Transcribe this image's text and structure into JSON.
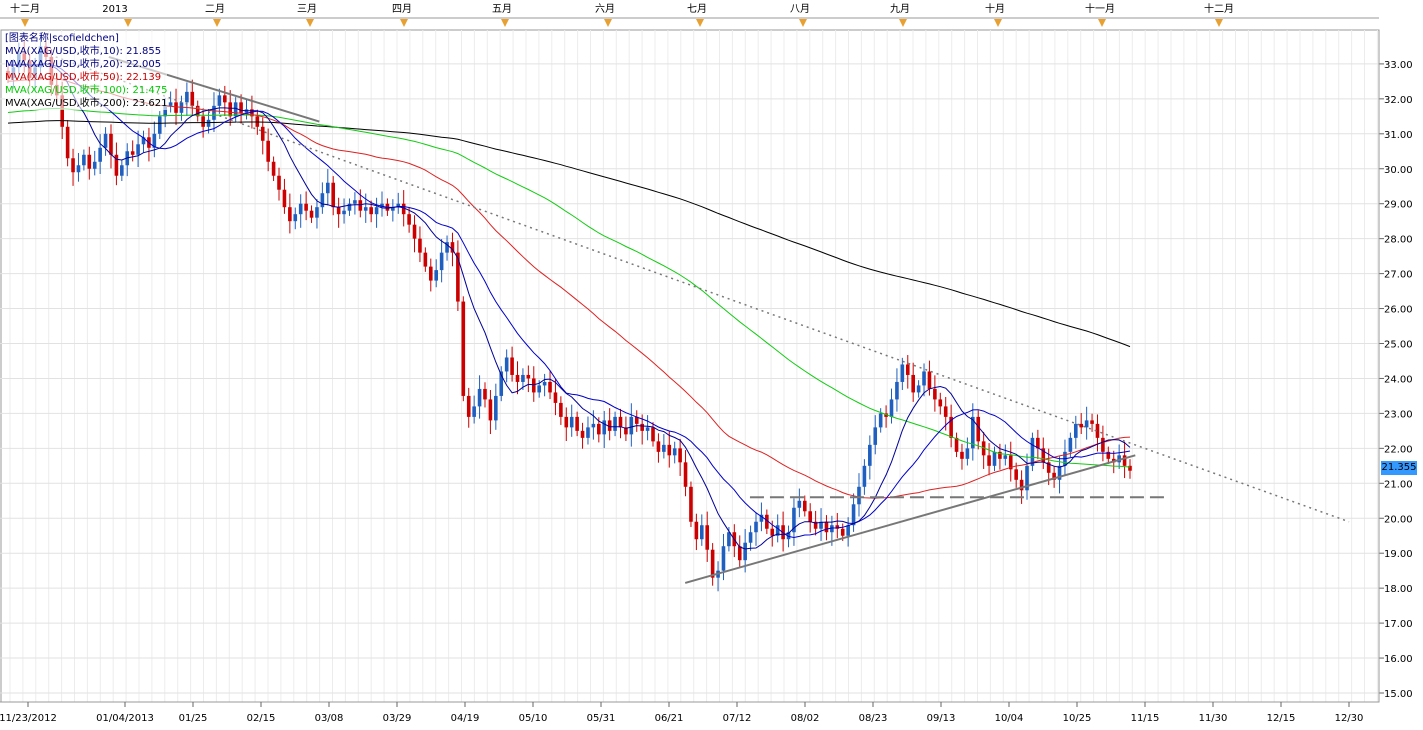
{
  "chart_data": {
    "type": "candlestick",
    "symbol_label": "[图表名称|scofieldchen]",
    "month_labels": [
      "十二月",
      "2013",
      "二月",
      "三月",
      "四月",
      "五月",
      "六月",
      "七月",
      "八月",
      "九月",
      "十月",
      "十一月",
      "十二月"
    ],
    "date_labels": [
      "11/23/2012",
      "01/04/2013",
      "01/25",
      "02/15",
      "03/08",
      "03/29",
      "04/19",
      "05/10",
      "05/31",
      "06/21",
      "07/12",
      "08/02",
      "08/23",
      "09/13",
      "10/04",
      "10/25",
      "11/15",
      "11/30",
      "12/15",
      "12/30"
    ],
    "y_ticks": [
      "33.00",
      "32.00",
      "31.00",
      "30.00",
      "29.00",
      "28.00",
      "27.00",
      "26.00",
      "25.00",
      "24.00",
      "23.00",
      "22.00",
      "21.00",
      "20.00",
      "19.00",
      "18.00",
      "17.00",
      "16.00",
      "15.00"
    ],
    "ylim": [
      15.0,
      33.8
    ],
    "last_price": "21.355",
    "legend": [
      {
        "label": "MVA(XAG/USD,收市,10): 21.855",
        "color": "#000080"
      },
      {
        "label": "MVA(XAG/USD,收市,20): 22.005",
        "color": "#000080"
      },
      {
        "label": "MVA(XAG/USD,收市,50): 22.139",
        "color": "#cc0000"
      },
      {
        "label": "MVA(XAG/USD,收市,100): 21.475",
        "color": "#00cc00"
      },
      {
        "label": "MVA(XAG/USD,收市,200): 23.621",
        "color": "#000000"
      }
    ],
    "series_colors": {
      "up": "#1f5fbf",
      "down": "#cc0000",
      "ma10": "#000099",
      "ma20": "#0000cc",
      "ma50": "#dd2222",
      "ma100": "#11cc11",
      "ma200": "#000000",
      "trend": "#777777",
      "grid": "#dddddd"
    },
    "grid": true,
    "candles_close": [
      32.6,
      32.9,
      33.3,
      33.1,
      32.6,
      32.9,
      33.5,
      33.2,
      32.4,
      32.1,
      31.2,
      30.3,
      29.9,
      30.1,
      30.4,
      30.0,
      30.2,
      30.6,
      31.0,
      30.4,
      29.8,
      30.1,
      30.5,
      30.4,
      30.7,
      30.9,
      30.6,
      31.0,
      31.5,
      31.8,
      31.9,
      31.6,
      31.9,
      32.2,
      31.8,
      31.5,
      31.2,
      31.4,
      31.8,
      32.1,
      31.9,
      31.5,
      31.9,
      31.6,
      31.7,
      31.5,
      31.2,
      30.8,
      30.2,
      29.8,
      29.4,
      28.9,
      28.5,
      28.7,
      29.0,
      28.8,
      28.6,
      28.9,
      29.3,
      29.6,
      28.9,
      28.7,
      28.8,
      29.0,
      29.1,
      28.8,
      28.9,
      28.7,
      28.9,
      29.0,
      28.8,
      28.9,
      29.0,
      28.7,
      28.4,
      28.0,
      27.6,
      27.2,
      26.8,
      27.1,
      27.6,
      27.9,
      27.6,
      26.2,
      23.5,
      22.9,
      23.2,
      23.7,
      23.4,
      22.8,
      23.5,
      24.2,
      24.6,
      24.1,
      23.9,
      24.1,
      24.0,
      23.6,
      23.8,
      23.9,
      23.6,
      23.3,
      22.9,
      22.6,
      22.9,
      22.5,
      22.3,
      22.6,
      22.7,
      22.4,
      22.8,
      22.5,
      22.9,
      22.6,
      22.4,
      22.9,
      22.7,
      22.5,
      22.6,
      22.2,
      21.9,
      22.1,
      21.8,
      22.0,
      21.6,
      20.9,
      19.9,
      19.4,
      19.8,
      19.1,
      18.3,
      18.5,
      19.2,
      19.6,
      19.2,
      18.8,
      19.3,
      19.6,
      19.9,
      20.1,
      19.7,
      19.5,
      19.8,
      19.4,
      19.6,
      20.3,
      20.5,
      20.2,
      19.9,
      19.7,
      19.9,
      19.6,
      19.8,
      19.7,
      19.5,
      19.8,
      20.4,
      20.9,
      21.5,
      22.1,
      22.6,
      23.0,
      22.9,
      23.4,
      23.9,
      24.4,
      24.1,
      23.6,
      23.8,
      24.2,
      23.7,
      23.4,
      23.2,
      22.9,
      22.3,
      21.9,
      21.7,
      22.0,
      22.9,
      22.2,
      21.8,
      21.5,
      21.9,
      21.7,
      21.8,
      21.4,
      21.1,
      20.8,
      21.5,
      22.3,
      22.0,
      21.6,
      21.3,
      21.1,
      21.5,
      21.9,
      22.3,
      22.7,
      22.6,
      22.8,
      22.7,
      22.3,
      21.9,
      21.7,
      21.6,
      21.8,
      21.5,
      21.36
    ],
    "trendlines": [
      {
        "name": "upper-dotted",
        "dates": [
          "2012-12-05",
          "2013-12-30"
        ],
        "values": [
          33.2,
          19.9
        ],
        "style": "dotted"
      },
      {
        "name": "upper-solid",
        "dates": [
          "2012-12-28",
          "2013-03-05"
        ],
        "values": [
          33.2,
          31.35
        ],
        "style": "solid"
      },
      {
        "name": "lower-solid",
        "dates": [
          "2013-06-26",
          "2013-11-12"
        ],
        "values": [
          18.15,
          21.8
        ],
        "style": "solid"
      },
      {
        "name": "support-dashed",
        "dates": [
          "2013-07-16",
          "2013-11-20"
        ],
        "values": [
          20.6,
          20.6
        ],
        "style": "dashed"
      }
    ]
  }
}
